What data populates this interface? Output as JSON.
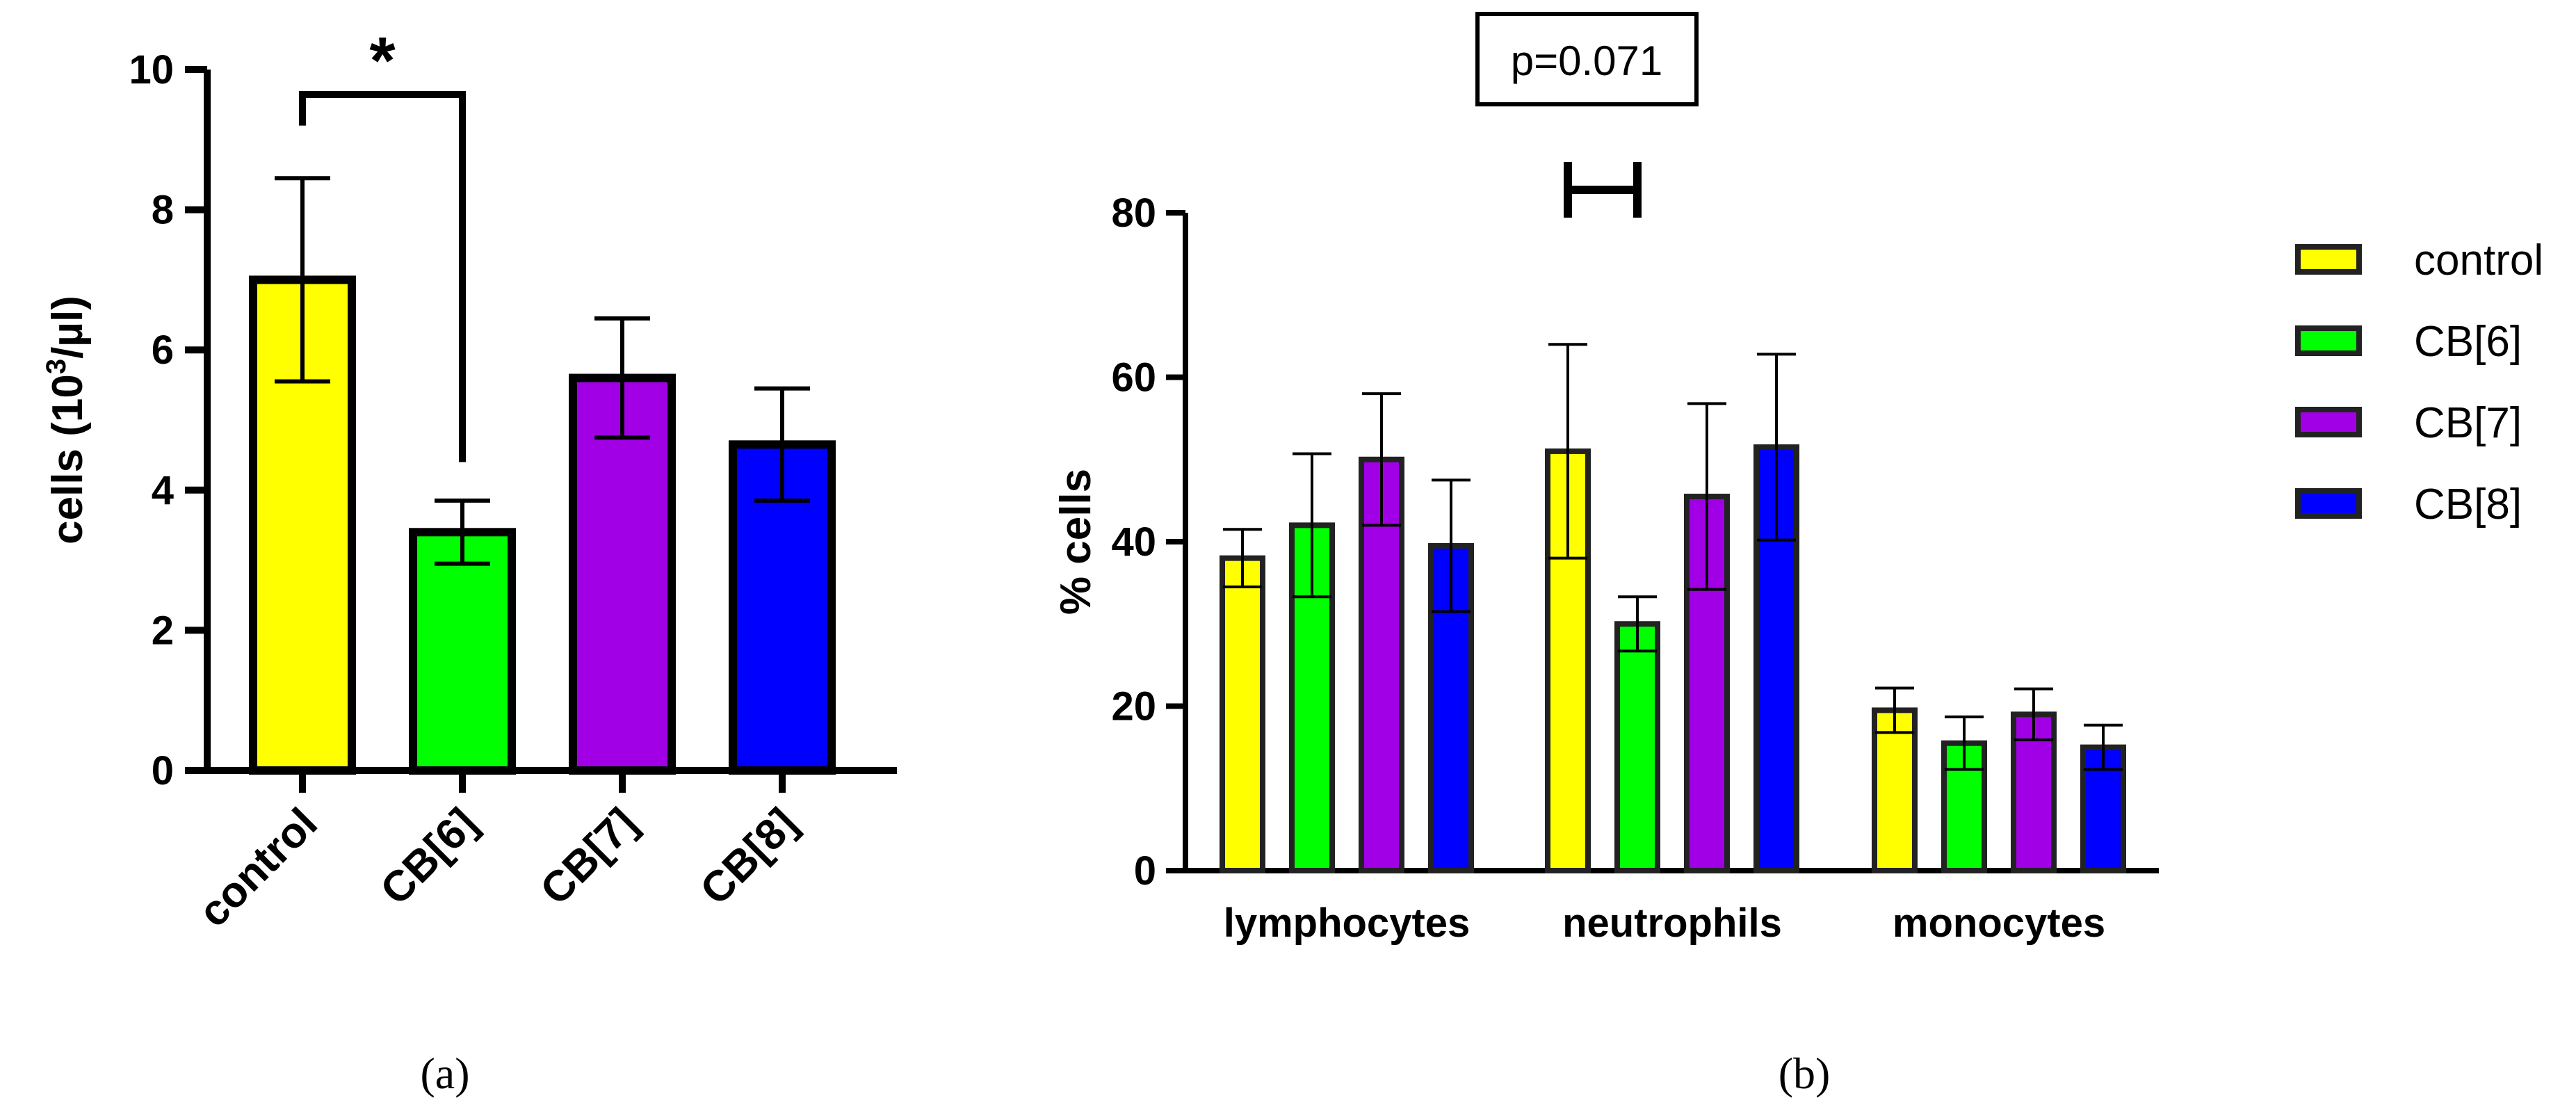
{
  "chart_data": [
    {
      "panel": "a",
      "type": "bar",
      "title": "",
      "xlabel": "",
      "ylabel": "cells (10³/µl)",
      "ylim": [
        0,
        10
      ],
      "yticks": [
        0,
        2,
        4,
        6,
        8,
        10
      ],
      "categories": [
        "control",
        "CB[6]",
        "CB[7]",
        "CB[8]"
      ],
      "colors": [
        "#ffff00",
        "#00ff00",
        "#a100e6",
        "#0000ff"
      ],
      "values": [
        7.0,
        3.4,
        5.6,
        4.65
      ],
      "errors": [
        1.45,
        0.45,
        0.85,
        0.8
      ],
      "significance": {
        "label": "*",
        "between": [
          "control",
          "CB[6]"
        ]
      }
    },
    {
      "panel": "b",
      "type": "bar",
      "title": "",
      "xlabel": "",
      "ylabel": "% cells",
      "ylim": [
        0,
        80
      ],
      "yticks": [
        0,
        20,
        40,
        60,
        80
      ],
      "categories": [
        "lymphocytes",
        "neutrophils",
        "monocytes"
      ],
      "series": [
        {
          "name": "control",
          "color": "#ffff00",
          "values": [
            38,
            51,
            19.5
          ],
          "errors": [
            3.5,
            13,
            2.7
          ]
        },
        {
          "name": "CB[6]",
          "color": "#00ff00",
          "values": [
            42,
            30,
            15.5
          ],
          "errors": [
            8.7,
            3.3,
            3.2
          ]
        },
        {
          "name": "CB[7]",
          "color": "#a100e6",
          "values": [
            50,
            45.5,
            19
          ],
          "errors": [
            8,
            11.3,
            3.1
          ]
        },
        {
          "name": "CB[8]",
          "color": "#0000ff",
          "values": [
            39.5,
            51.5,
            15
          ],
          "errors": [
            8,
            11.3,
            2.7
          ]
        }
      ],
      "annotation": {
        "text": "p=0.071",
        "between": [
          "control",
          "CB[6]"
        ],
        "category": "neutrophils"
      },
      "legend_position": "right"
    }
  ],
  "panel_labels": [
    "(a)",
    "(b)"
  ]
}
